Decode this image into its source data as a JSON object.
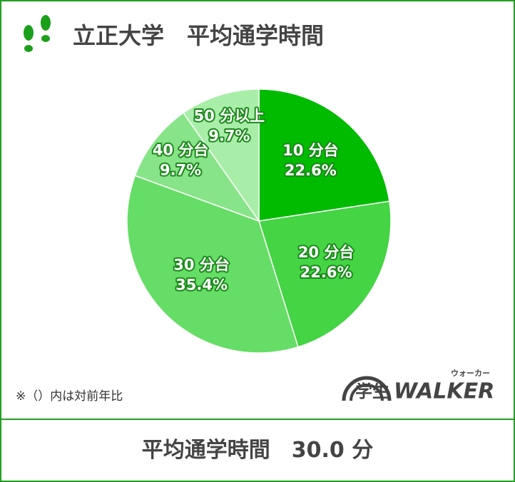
{
  "chart_data": {
    "type": "pie",
    "title": "立正大学　平均通学時間",
    "categories": [
      "10 分台",
      "20 分台",
      "30 分台",
      "40 分台",
      "50 分以上"
    ],
    "values": [
      22.6,
      22.6,
      35.4,
      9.7,
      9.7
    ],
    "value_labels": [
      "22.6%",
      "22.6%",
      "35.4%",
      "9.7%",
      "9.7%"
    ],
    "colors": [
      "#00bb00",
      "#44d444",
      "#66dd66",
      "#88e488",
      "#a8eea8"
    ],
    "note": "※（）内は対前年比"
  },
  "logo": {
    "prefix": "学生",
    "name": "WALKER",
    "reading": "ウォーカー"
  },
  "summary": {
    "label": "平均通学時間",
    "value": "30.0 分"
  }
}
